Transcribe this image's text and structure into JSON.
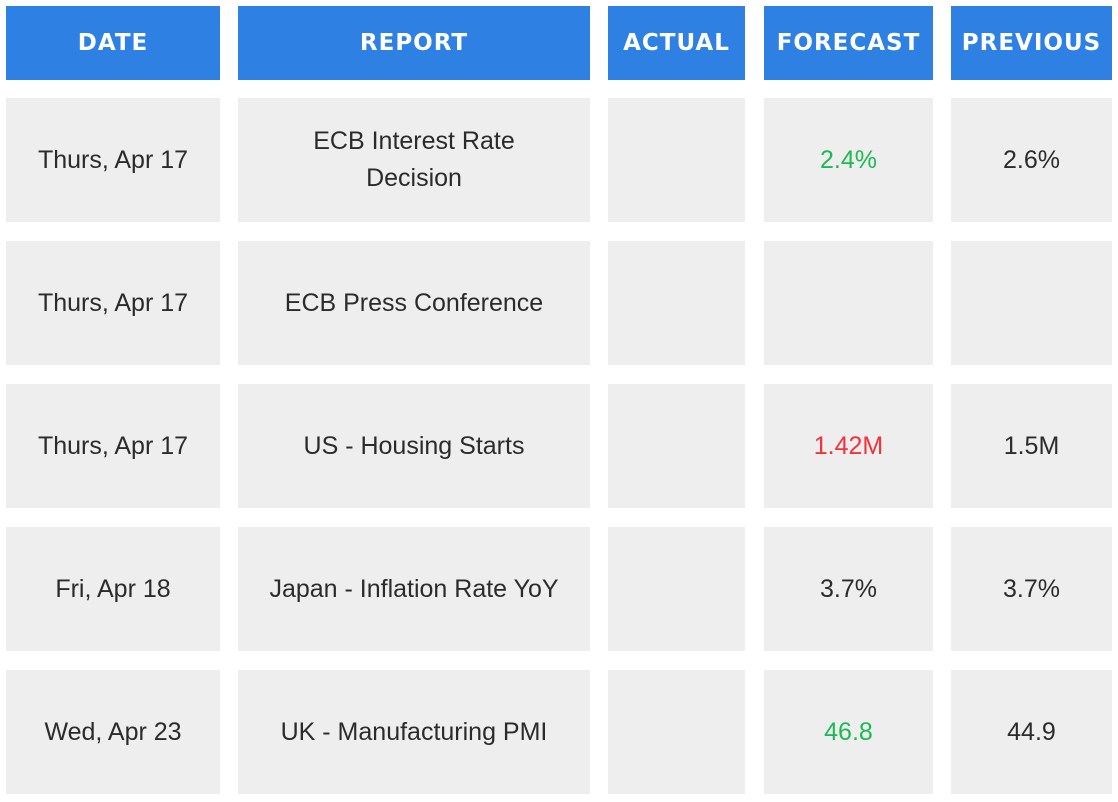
{
  "table": {
    "headers": [
      "DATE",
      "REPORT",
      "ACTUAL",
      "FORECAST",
      "PREVIOUS"
    ],
    "rows": [
      {
        "date": "Thurs, Apr 17",
        "report": "ECB Interest Rate Decision",
        "forecast": "2.4%",
        "forecast_color": "#1db954",
        "previous": "2.6%"
      },
      {
        "date": "Thurs, Apr 17",
        "report": "ECB Press Conference"
      },
      {
        "date": "Thurs, Apr 17",
        "report": "US - Housing Starts",
        "forecast": "1.42M",
        "forecast_color": "#f0323a",
        "previous": "1.5M"
      },
      {
        "date": "Fri, Apr 18",
        "report": "Japan - Inflation Rate YoY",
        "forecast": "3.7%",
        "previous": "3.7%"
      },
      {
        "date": "Wed, Apr 23",
        "report": "UK - Manufacturing PMI",
        "forecast": "46.8",
        "forecast_color": "#1db954",
        "previous": "44.9"
      }
    ]
  }
}
